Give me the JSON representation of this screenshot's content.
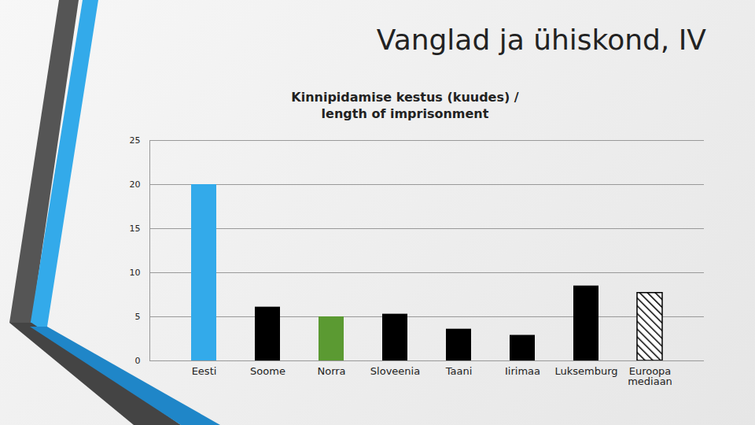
{
  "page_title": "Vanglad ja ühiskond, IV",
  "chart_data": {
    "type": "bar",
    "title": "Kinnipidamise kestus (kuudes) / length of imprisonment",
    "categories": [
      "Eesti",
      "Soome",
      "Norra",
      "Sloveenia",
      "Taani",
      "Iirimaa",
      "Luksemburg",
      "Euroopa mediaan"
    ],
    "values": [
      20,
      6.1,
      5,
      5.3,
      3.6,
      2.9,
      8.5,
      7.7
    ],
    "colors": [
      "#33aaea",
      "#000000",
      "#5b9a32",
      "#000000",
      "#000000",
      "#000000",
      "#000000",
      "#ffffff"
    ],
    "ylim": [
      0,
      25
    ],
    "yticks": [
      0,
      5,
      10,
      15,
      20,
      25
    ],
    "grid": true
  }
}
